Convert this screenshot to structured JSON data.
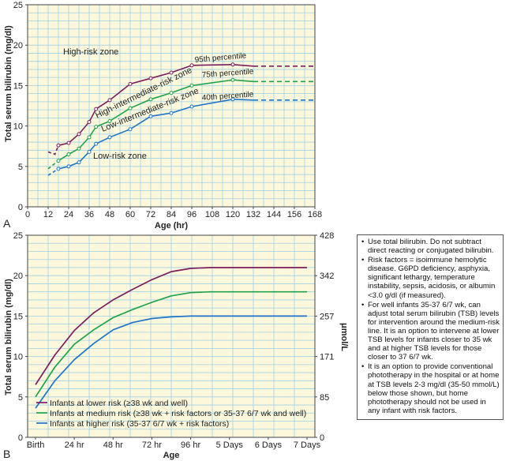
{
  "panel_labels": [
    "A",
    "B"
  ],
  "chart_data": [
    {
      "type": "line",
      "panel": "A",
      "xlabel": "Age (hr)",
      "ylabel": "Total serum bilirubin (mg/dl)",
      "xlim": [
        0,
        168
      ],
      "ylim": [
        0,
        25
      ],
      "xticks": [
        0,
        12,
        24,
        36,
        48,
        60,
        72,
        84,
        96,
        108,
        120,
        132,
        144,
        156,
        168
      ],
      "yticks": [
        0,
        5,
        10,
        15,
        20,
        25
      ],
      "grid": true,
      "background": "#fdf8dc",
      "zone_labels": [
        "High-risk zone",
        "High-intermediate-risk zone",
        "Low-intermediate-risk zone",
        "Low-risk zone"
      ],
      "series": [
        {
          "name": "95th percentile",
          "color": "#7a1e5f",
          "x": [
            18,
            24,
            30,
            36,
            40,
            48,
            60,
            72,
            84,
            96,
            120
          ],
          "y": [
            7.6,
            7.9,
            9.0,
            10.5,
            12.1,
            13.2,
            15.2,
            15.9,
            16.6,
            17.5,
            17.6
          ],
          "dashed_start": [
            [
              12,
              6.8
            ],
            [
              16,
              6.5
            ],
            [
              18,
              7.6
            ]
          ],
          "dashed_end": [
            [
              132,
              17.4
            ],
            [
              168,
              17.4
            ]
          ]
        },
        {
          "name": "75th percentile",
          "color": "#1fa34a",
          "x": [
            18,
            24,
            30,
            36,
            40,
            48,
            60,
            72,
            84,
            96,
            120
          ],
          "y": [
            5.7,
            6.5,
            7.2,
            8.6,
            9.9,
            10.6,
            12.2,
            13.3,
            14.1,
            15.0,
            15.7
          ],
          "dashed_start": [
            [
              12,
              4.7
            ],
            [
              18,
              5.7
            ]
          ],
          "dashed_end": [
            [
              132,
              15.5
            ],
            [
              168,
              15.5
            ]
          ]
        },
        {
          "name": "40th percentile",
          "color": "#1f75c8",
          "x": [
            18,
            24,
            30,
            36,
            40,
            48,
            60,
            72,
            84,
            96,
            120
          ],
          "y": [
            4.7,
            5.0,
            5.5,
            6.8,
            7.8,
            8.6,
            9.6,
            11.2,
            11.6,
            12.4,
            13.3
          ],
          "dashed_start": [
            [
              12,
              3.9
            ],
            [
              18,
              4.7
            ]
          ],
          "dashed_end": [
            [
              132,
              13.2
            ],
            [
              168,
              13.2
            ]
          ]
        }
      ]
    },
    {
      "type": "line",
      "panel": "B",
      "xlabel": "Age",
      "ylabel": "Total serum bilirubin (mg/dl)",
      "ylabel_right": "μmol/L",
      "categories": [
        "Birth",
        "24 hr",
        "48 hr",
        "72 hr",
        "96 hr",
        "5 Days",
        "6 Days",
        "7 Days"
      ],
      "ylim": [
        0,
        25
      ],
      "yticks": [
        0,
        5,
        10,
        15,
        20,
        25
      ],
      "yticks_right": [
        "0",
        "85",
        "171",
        "257",
        "342",
        "428"
      ],
      "grid": true,
      "background": "#fdf8dc",
      "series": [
        {
          "name": "Infants at lower risk (≥38 wk and well)",
          "color": "#7a1e5f",
          "x": [
            0,
            0.5,
            1,
            1.5,
            2,
            2.5,
            3,
            3.5,
            4,
            4.5,
            5,
            6,
            7
          ],
          "y": [
            6.5,
            10.2,
            13.2,
            15.4,
            17.0,
            18.3,
            19.5,
            20.5,
            20.9,
            21,
            21,
            21,
            21
          ]
        },
        {
          "name": "Infants at medium risk (≥38 wk + risk factors or 35-37 6/7 wk and well)",
          "color": "#1fa34a",
          "x": [
            0,
            0.5,
            1,
            1.5,
            2,
            2.5,
            3,
            3.5,
            4,
            4.5,
            5,
            6,
            7
          ],
          "y": [
            5.0,
            8.7,
            11.5,
            13.3,
            14.8,
            15.8,
            16.7,
            17.5,
            17.9,
            18,
            18,
            18,
            18
          ]
        },
        {
          "name": "Infants at higher risk (35-37 6/7 wk + risk factors)",
          "color": "#1f75c8",
          "x": [
            0,
            0.5,
            1,
            1.5,
            2,
            2.5,
            3,
            3.5,
            4,
            4.5,
            5,
            6,
            7
          ],
          "y": [
            3.6,
            7.0,
            9.6,
            11.6,
            13.3,
            14.2,
            14.7,
            14.9,
            15,
            15,
            15,
            15,
            15
          ]
        }
      ]
    }
  ],
  "notes": [
    "Use total bilirubin. Do not subtract direct reacting or conjugated bilirubin.",
    "Risk factors = isoimmune hemolytic disease. G6PD deficiency, asphyxia, significant lethargy, temperature instability, sepsis, acidosis, or albumin <3.0 g/dl (if measured).",
    "For well infants 35-37 6/7 wk, can adjust total serum bilirubin (TSB) levels for intervention around the medium-risk line. It is an option to intervene at lower TSB levels for infants closer to 35 wk and at higher TSB levels for those closer to 37 6/7 wk.",
    "It is an option to provide conventional phototherapy in the hospital or at home at TSB levels 2-3 mg/dl (35-50 mmol/L) below those shown, but home phototherapy should not be used in any infant with risk factors."
  ]
}
